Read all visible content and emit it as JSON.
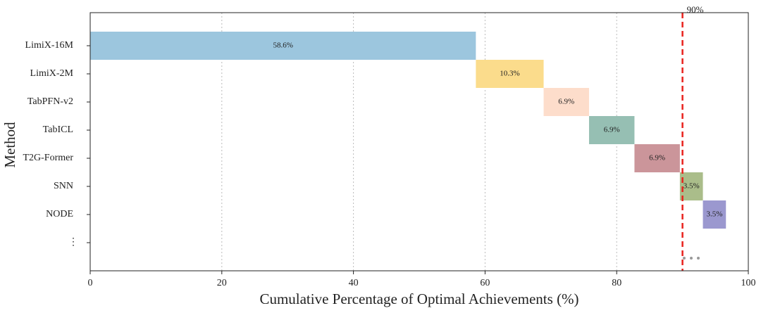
{
  "chart_data": {
    "type": "waterfall-bar",
    "orientation": "horizontal",
    "xlabel": "Cumulative Percentage of Optimal Achievements (%)",
    "ylabel": "Method",
    "categories": [
      "LimiX-16M",
      "LimiX-2M",
      "TabPFN-v2",
      "TabICL",
      "T2G-Former",
      "SNN",
      "NODE",
      "⋮"
    ],
    "values": [
      58.6,
      10.3,
      6.9,
      6.9,
      6.9,
      3.5,
      3.5,
      null
    ],
    "value_labels": [
      "58.6%",
      "10.3%",
      "6.9%",
      "6.9%",
      "6.9%",
      "3.5%",
      "3.5%",
      null
    ],
    "colors": [
      "#9cc6de",
      "#fbdc8c",
      "#fdddcb",
      "#96bfb3",
      "#cb959a",
      "#aabd8a",
      "#9b98cf"
    ],
    "xlim": [
      0,
      100
    ],
    "xticks": [
      0,
      20,
      40,
      60,
      80,
      100
    ],
    "grid": true,
    "reference_line": {
      "value": 90,
      "label": "90%",
      "color": "#e8211c"
    }
  }
}
